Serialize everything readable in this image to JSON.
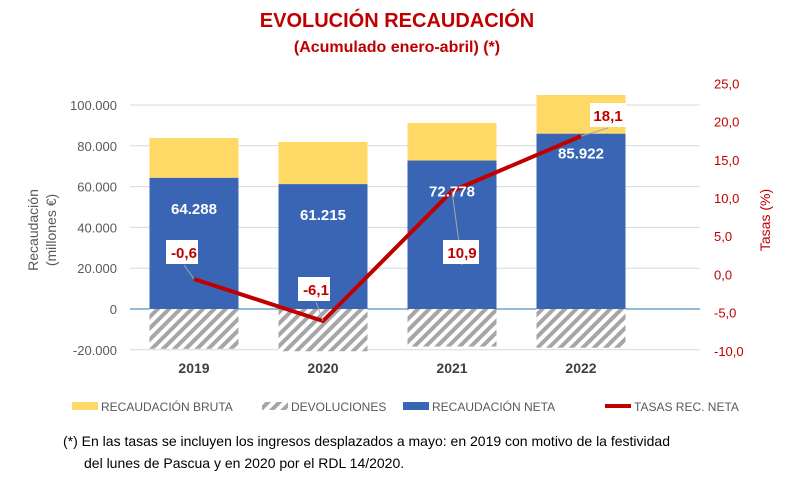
{
  "chart_data": {
    "type": "bar",
    "stacked": true,
    "title": "EVOLUCIÓN RECAUDACIÓN",
    "subtitle": "(Acumulado enero-abril) (*)",
    "categories": [
      "2019",
      "2020",
      "2021",
      "2022"
    ],
    "ylabel": "Recaudación (millones €)",
    "ylabel_lines": [
      "Recaudación",
      "(millones €)"
    ],
    "ylim": [
      -20000,
      100000
    ],
    "yticks": [
      "-20.000",
      "0",
      "20.000",
      "40.000",
      "60.000",
      "80.000",
      "100.000"
    ],
    "y2label": "Tasas (%)",
    "y2lim": [
      -10,
      25
    ],
    "y2ticks": [
      "-10,0",
      "-5,0",
      "0,0",
      "5,0",
      "10,0",
      "15,0",
      "20,0",
      "25,0"
    ],
    "grid": true,
    "legend_position": "bottom",
    "series": [
      {
        "name": "RECAUDACIÓN BRUTA",
        "type": "bar",
        "color": "#ffd966",
        "values": [
          83800,
          81900,
          91200,
          104900
        ]
      },
      {
        "name": "DEVOLUCIONES",
        "type": "bar",
        "color": "#a6a6a6",
        "pattern": "hatch",
        "values": [
          -19500,
          -20700,
          -18400,
          -19000
        ]
      },
      {
        "name": "RECAUDACIÓN NETA",
        "type": "bar",
        "color": "#3a65b5",
        "values": [
          64288,
          61215,
          72778,
          85922
        ],
        "labels": [
          "64.288",
          "61.215",
          "72.778",
          "85.922"
        ]
      },
      {
        "name": "TASAS REC. NETA",
        "type": "line",
        "axis": "right",
        "color": "#c00000",
        "values": [
          -0.6,
          -6.1,
          10.9,
          18.1
        ],
        "labels": [
          "-0,6",
          "-6,1",
          "10,9",
          "18,1"
        ]
      }
    ]
  },
  "footnote": {
    "line1": "(*) En las tasas se incluyen los ingresos desplazados a mayo: en 2019 con motivo de la festividad",
    "line2": "del lunes de Pascua y en 2020 por el RDL 14/2020."
  }
}
